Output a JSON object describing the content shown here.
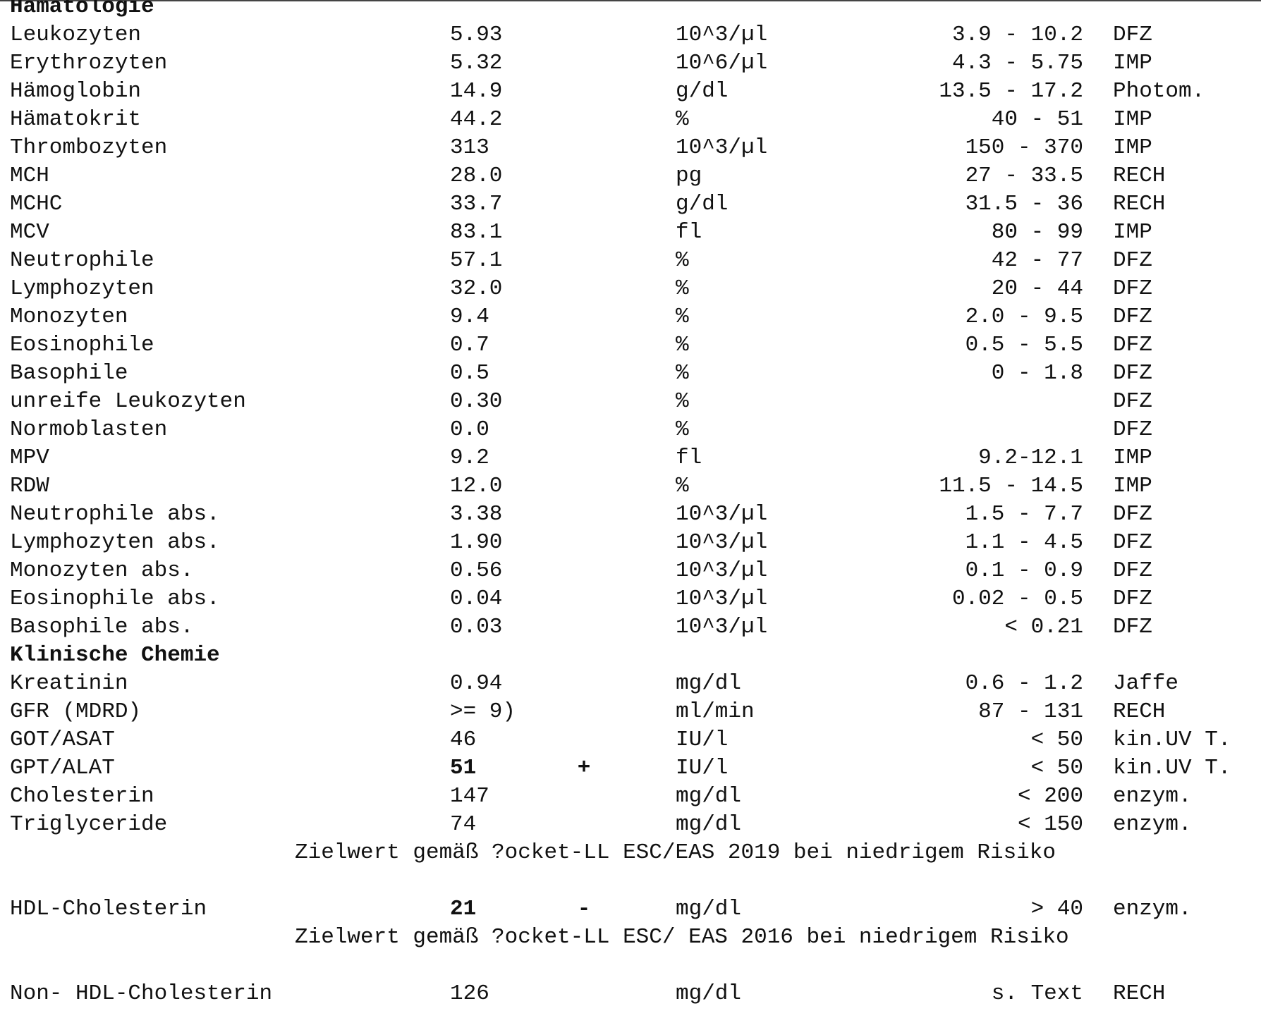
{
  "sections": [
    {
      "title": "Hämatologie",
      "rows": [
        {
          "name": "Leukozyten",
          "value": "5.93",
          "unit": "10^3/µl",
          "range": "3.9 - 10.2",
          "method": "DFZ"
        },
        {
          "name": "Erythrozyten",
          "value": "5.32",
          "unit": "10^6/µl",
          "range": "4.3 - 5.75",
          "method": "IMP"
        },
        {
          "name": "Hämoglobin",
          "value": "14.9",
          "unit": "g/dl",
          "range": "13.5 - 17.2",
          "method": "Photom."
        },
        {
          "name": "Hämatokrit",
          "value": "44.2",
          "unit": "%",
          "range": "40 - 51",
          "method": "IMP"
        },
        {
          "name": "Thrombozyten",
          "value": "313",
          "unit": "10^3/µl",
          "range": "150 - 370",
          "method": "IMP"
        },
        {
          "name": "MCH",
          "value": "28.0",
          "unit": "pg",
          "range": "27 - 33.5",
          "method": "RECH"
        },
        {
          "name": "MCHC",
          "value": "33.7",
          "unit": "g/dl",
          "range": "31.5 - 36",
          "method": "RECH"
        },
        {
          "name": "MCV",
          "value": "83.1",
          "unit": "fl",
          "range": "80 - 99",
          "method": "IMP"
        },
        {
          "name": "Neutrophile",
          "value": "57.1",
          "unit": "%",
          "range": "42 - 77",
          "method": "DFZ"
        },
        {
          "name": "Lymphozyten",
          "value": "32.0",
          "unit": "%",
          "range": "20 - 44",
          "method": "DFZ"
        },
        {
          "name": "Monozyten",
          "value": "9.4",
          "unit": "%",
          "range": "2.0 - 9.5",
          "method": "DFZ"
        },
        {
          "name": "Eosinophile",
          "value": "0.7",
          "unit": "%",
          "range": "0.5 - 5.5",
          "method": "DFZ"
        },
        {
          "name": "Basophile",
          "value": "0.5",
          "unit": "%",
          "range": "0 - 1.8",
          "method": "DFZ"
        },
        {
          "name": "unreife Leukozyten",
          "value": "0.30",
          "unit": "%",
          "method": "DFZ"
        },
        {
          "name": "Normoblasten",
          "value": "0.0",
          "unit": "%",
          "method": "DFZ"
        },
        {
          "name": "MPV",
          "value": "9.2",
          "unit": "fl",
          "range": "9.2-12.1",
          "method": "IMP"
        },
        {
          "name": "RDW",
          "value": "12.0",
          "unit": "%",
          "range": "11.5 - 14.5",
          "method": "IMP"
        },
        {
          "name": "Neutrophile abs.",
          "value": "3.38",
          "unit": "10^3/µl",
          "range": "1.5 - 7.7",
          "method": "DFZ"
        },
        {
          "name": "Lymphozyten abs.",
          "value": "1.90",
          "unit": "10^3/µl",
          "range": "1.1 - 4.5",
          "method": "DFZ"
        },
        {
          "name": "Monozyten abs.",
          "value": "0.56",
          "unit": "10^3/µl",
          "range": "0.1 - 0.9",
          "method": "DFZ"
        },
        {
          "name": "Eosinophile abs.",
          "value": "0.04",
          "unit": "10^3/µl",
          "range": "0.02 - 0.5",
          "method": "DFZ"
        },
        {
          "name": "Basophile abs.",
          "value": "0.03",
          "unit": "10^3/µl",
          "range": "< 0.21",
          "method": "DFZ"
        }
      ]
    },
    {
      "title": "Klinische Chemie",
      "rows": [
        {
          "name": "Kreatinin",
          "value": "0.94",
          "unit": "mg/dl",
          "range": "0.6 - 1.2",
          "method": "Jaffe"
        },
        {
          "name": "GFR (MDRD)",
          "value": ">= 9)",
          "unit": "ml/min",
          "range": "87 - 131",
          "method": "RECH"
        },
        {
          "name": "GOT/ASAT",
          "value": "46",
          "unit": "IU/l",
          "range": "< 50",
          "method": "kin.UV T."
        },
        {
          "name": "GPT/ALAT",
          "value": "51",
          "flag": "+",
          "unit": "IU/l",
          "range": "< 50",
          "method": "kin.UV T."
        },
        {
          "name": "Cholesterin",
          "value": "147",
          "unit": "mg/dl",
          "range": "< 200",
          "method": "enzym."
        },
        {
          "name": "Triglyceride",
          "value": "74",
          "unit": "mg/dl",
          "range": "< 150",
          "method": "enzym."
        },
        {
          "note": "Zielwert gemäß ?ocket-LL ESC/EAS 2019 bei niedrigem Risiko"
        },
        {
          "name": "HDL-Cholesterin",
          "value": "21",
          "flag": "-",
          "unit": "mg/dl",
          "range": "> 40",
          "method": "enzym."
        },
        {
          "note": "Zielwert gemäß ?ocket-LL ESC/ EAS 2016 bei niedrigem Risiko"
        },
        {
          "name": "Non- HDL-Cholesterin",
          "value": "126",
          "unit": "mg/dl",
          "range": "s. Text",
          "method": "RECH"
        }
      ]
    }
  ]
}
